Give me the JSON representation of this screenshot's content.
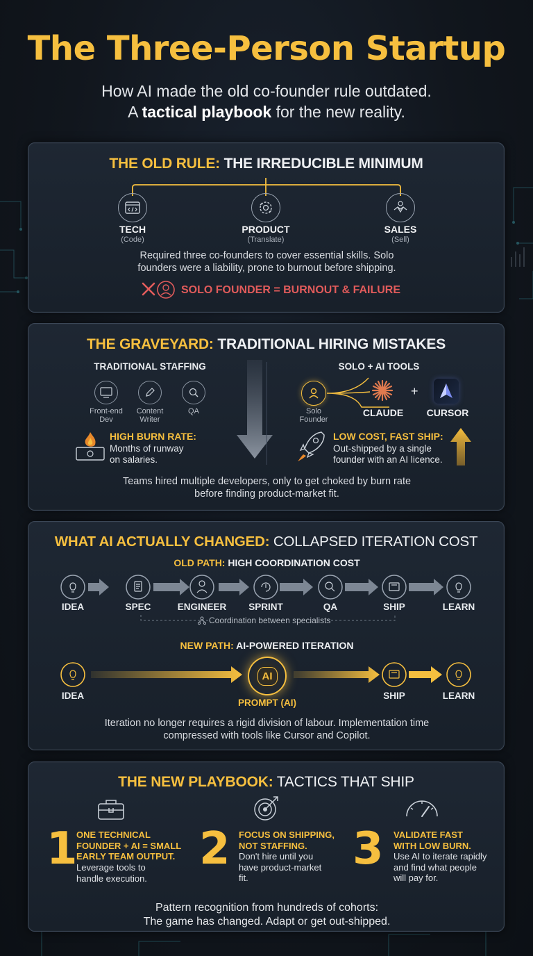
{
  "title": "The Three-Person Startup",
  "subtitle_line1": "How AI made the old co-founder rule outdated.",
  "subtitle_line2_pre": "A ",
  "subtitle_line2_bold": "tactical playbook",
  "subtitle_line2_post": " for the new reality.",
  "old_rule": {
    "heading_gold": "THE OLD RULE:",
    "heading_white": " THE IRREDUCIBLE MINIMUM",
    "roles": [
      {
        "label": "TECH",
        "sub": "(Code)",
        "icon": "code-window-icon"
      },
      {
        "label": "PRODUCT",
        "sub": "(Translate)",
        "icon": "translate-gear-icon"
      },
      {
        "label": "SALES",
        "sub": "(Sell)",
        "icon": "handshake-icon"
      }
    ],
    "description": "Required three co-founders to cover essential skills. Solo founders were a liability, prone to burnout before shipping.",
    "warning": "SOLO FOUNDER = BURNOUT & FAILURE"
  },
  "graveyard": {
    "heading_gold": "THE GRAVEYARD:",
    "heading_white": " TRADITIONAL HIRING MISTAKES",
    "left_title": "TRADITIONAL STAFFING",
    "left_roles": [
      {
        "label": "Front-end Dev",
        "icon": "monitor-icon"
      },
      {
        "label": "Content Writer",
        "icon": "pen-icon"
      },
      {
        "label": "QA",
        "icon": "magnifier-icon"
      }
    ],
    "burn_title": "HIGH BURN RATE:",
    "burn_body": "Months of runway on salaries.",
    "right_title": "SOLO + AI TOOLS",
    "solo_label": "Solo Founder",
    "tool1": "CLAUDE",
    "tool2": "CURSOR",
    "plus": "+",
    "ship_title": "LOW COST, FAST SHIP:",
    "ship_body": "Out-shipped by a single founder with an AI licence.",
    "description": "Teams hired multiple developers, only to get choked by burn rate before finding product-market fit."
  },
  "changed": {
    "heading_gold": "WHAT AI ACTUALLY CHANGED:",
    "heading_white": " COLLAPSED ITERATION COST",
    "old_path_gold": "OLD PATH:",
    "old_path_white": " HIGH COORDINATION COST",
    "old_steps": [
      "IDEA",
      "SPEC",
      "ENGINEER",
      "SPRINT",
      "QA",
      "SHIP",
      "LEARN"
    ],
    "coordination": "Coordination between specialists",
    "new_path_gold": "NEW PATH:",
    "new_path_white": " AI-POWERED ITERATION",
    "new_steps": [
      "IDEA",
      "PROMPT (AI)",
      "SHIP",
      "LEARN"
    ],
    "ai_badge": "AI",
    "description": "Iteration no longer requires a rigid division of labour. Implementation time compressed with tools like Cursor and Copilot."
  },
  "playbook": {
    "heading_gold": "THE NEW PLAYBOOK:",
    "heading_white": " TACTICS THAT SHIP",
    "tactics": [
      {
        "num": "1",
        "title": "ONE TECHNICAL FOUNDER + AI = SMALL EARLY TEAM OUTPUT.",
        "body": "Leverage tools to handle execution.",
        "icon": "toolbox-icon"
      },
      {
        "num": "2",
        "title": "FOCUS ON SHIPPING, NOT STAFFING.",
        "body": "Don't hire until you have product-market fit.",
        "icon": "target-icon"
      },
      {
        "num": "3",
        "title": "VALIDATE FAST WITH LOW BURN.",
        "body": "Use AI to iterate rapidly and find what people will pay for.",
        "icon": "gauge-icon"
      }
    ],
    "footer_line1": "Pattern recognition from hundreds of cohorts:",
    "footer_line2": "The game has changed. Adapt or get out-shipped."
  }
}
